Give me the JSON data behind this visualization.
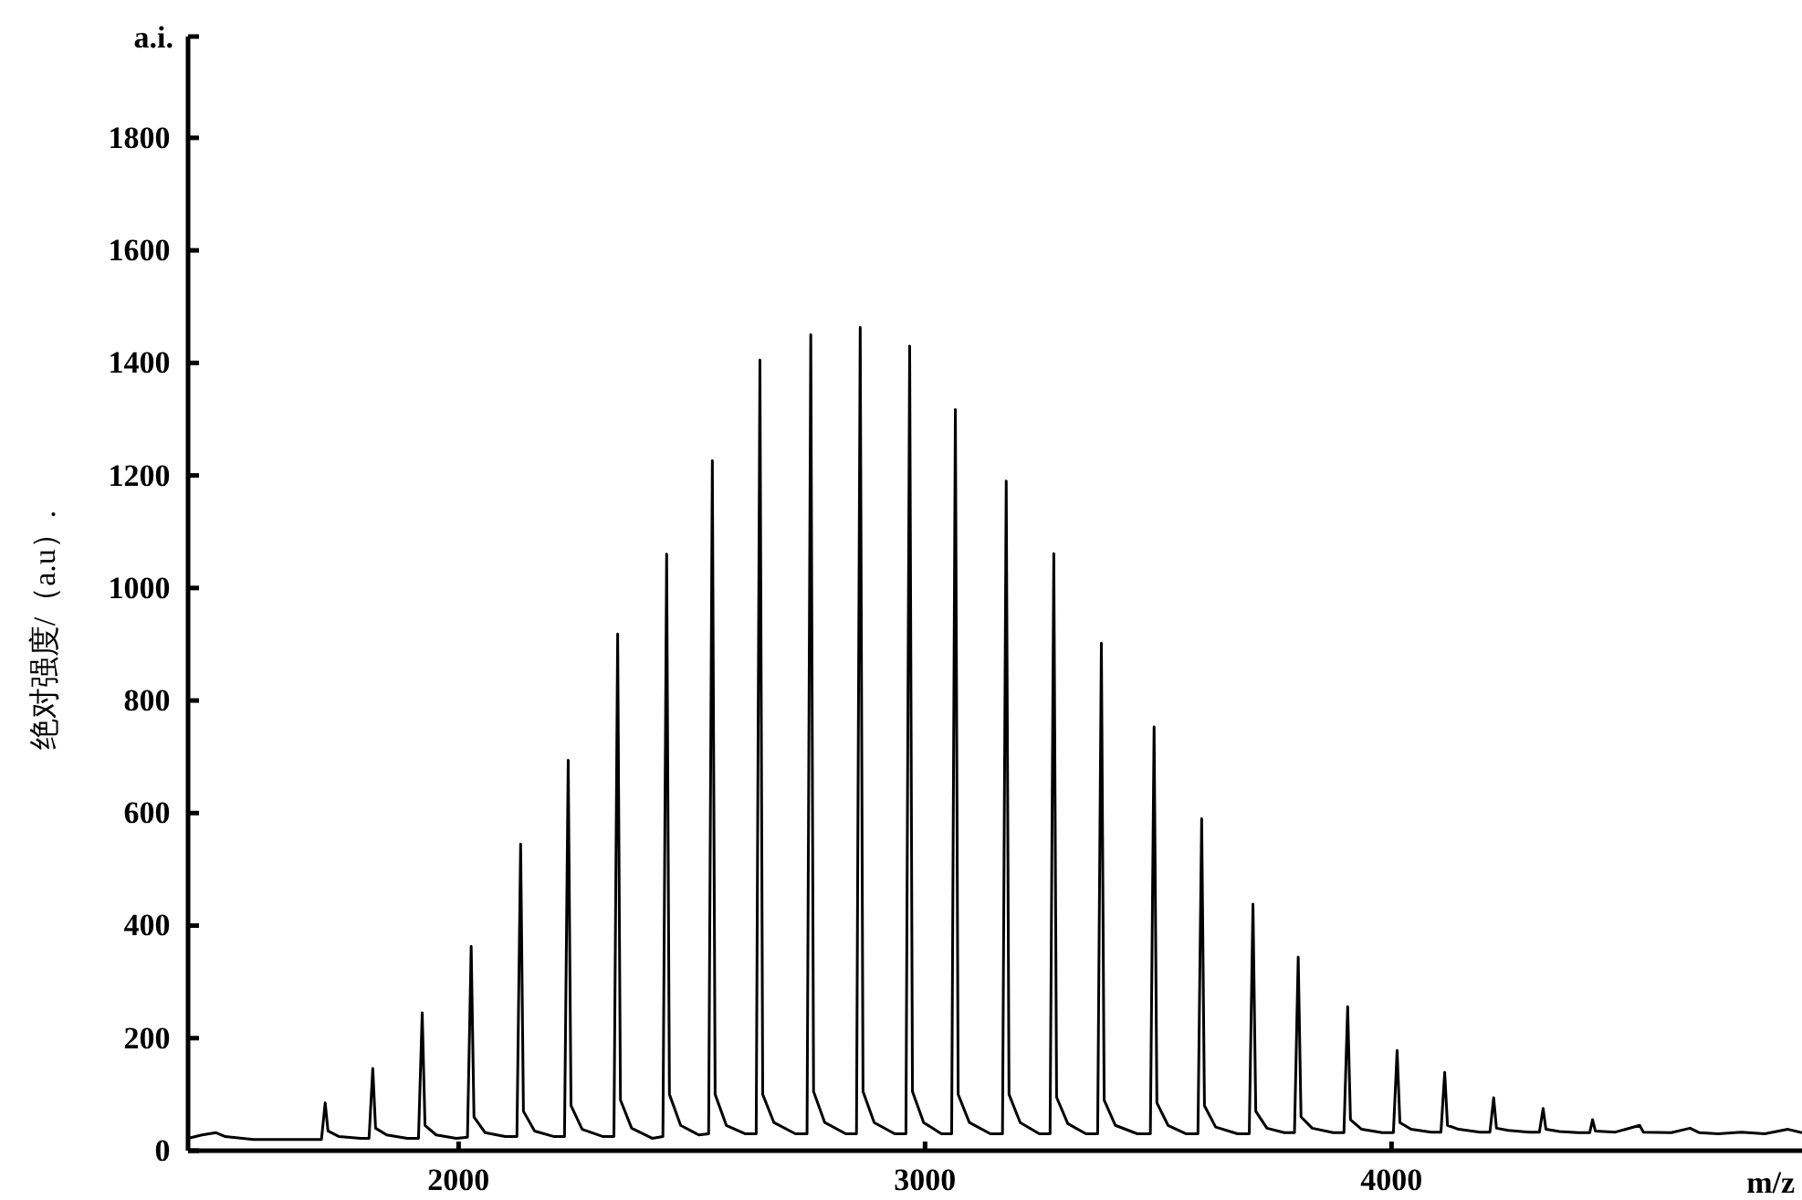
{
  "chart_data": {
    "type": "line",
    "xlabel": "m/z",
    "ylabel": "绝对强度/（a.u）.",
    "annotations": [
      "a.i."
    ],
    "xlim": [
      1420,
      4880
    ],
    "ylim": [
      0,
      1980
    ],
    "xticks": [
      2000,
      3000,
      4000
    ],
    "yticks": [
      0,
      200,
      400,
      600,
      800,
      1000,
      1200,
      1400,
      1600,
      1800
    ],
    "marker": "none",
    "line_style": "solid",
    "series": [
      {
        "color": "#000000",
        "x": [
          1420,
          1450,
          1480,
          1500,
          1560,
          1650,
          1706,
          1714,
          1720,
          1744,
          1790,
          1808,
          1816,
          1822,
          1846,
          1890,
          1914,
          1922,
          1928,
          1952,
          1995,
          2019,
          2027,
          2033,
          2057,
          2100,
          2125,
          2133,
          2139,
          2163,
          2205,
          2227,
          2235,
          2241,
          2265,
          2310,
          2333,
          2341,
          2347,
          2371,
          2415,
          2438,
          2446,
          2452,
          2476,
          2515,
          2536,
          2544,
          2550,
          2574,
          2615,
          2638,
          2646,
          2652,
          2676,
          2722,
          2747,
          2755,
          2761,
          2785,
          2830,
          2853,
          2861,
          2867,
          2891,
          2935,
          2959,
          2967,
          2973,
          2997,
          3035,
          3057,
          3065,
          3071,
          3095,
          3140,
          3166,
          3174,
          3180,
          3204,
          3245,
          3268,
          3276,
          3282,
          3306,
          3345,
          3370,
          3378,
          3384,
          3408,
          3455,
          3483,
          3491,
          3497,
          3521,
          3560,
          3585,
          3593,
          3599,
          3623,
          3670,
          3695,
          3703,
          3709,
          3733,
          3770,
          3792,
          3800,
          3806,
          3830,
          3875,
          3898,
          3906,
          3912,
          3936,
          3980,
          4004,
          4012,
          4018,
          4042,
          4085,
          4106,
          4114,
          4120,
          4144,
          4190,
          4211,
          4219,
          4225,
          4250,
          4295,
          4317,
          4325,
          4331,
          4360,
          4400,
          4425,
          4431,
          4437,
          4480,
          4532,
          4540,
          4600,
          4640,
          4660,
          4700,
          4750,
          4800,
          4850,
          4880
        ],
        "values": [
          22,
          28,
          32,
          25,
          20,
          20,
          20,
          85,
          35,
          25,
          22,
          22,
          146,
          40,
          28,
          22,
          22,
          245,
          45,
          28,
          22,
          24,
          363,
          60,
          32,
          25,
          25,
          545,
          70,
          35,
          25,
          25,
          694,
          80,
          38,
          25,
          25,
          918,
          90,
          40,
          22,
          25,
          1060,
          100,
          45,
          28,
          30,
          1226,
          100,
          45,
          30,
          30,
          1405,
          100,
          50,
          30,
          30,
          1450,
          105,
          50,
          30,
          30,
          1463,
          105,
          50,
          30,
          30,
          1430,
          105,
          50,
          30,
          30,
          1317,
          100,
          50,
          30,
          30,
          1190,
          100,
          50,
          30,
          30,
          1061,
          95,
          48,
          30,
          30,
          902,
          90,
          45,
          30,
          30,
          753,
          85,
          45,
          30,
          30,
          590,
          80,
          42,
          30,
          30,
          438,
          70,
          40,
          32,
          32,
          344,
          60,
          40,
          32,
          32,
          256,
          55,
          38,
          32,
          32,
          178,
          50,
          38,
          33,
          33,
          139,
          45,
          38,
          33,
          33,
          94,
          40,
          36,
          33,
          33,
          75,
          38,
          34,
          32,
          32,
          55,
          35,
          33,
          45,
          33,
          32,
          40,
          32,
          30,
          33,
          30,
          38,
          32
        ]
      }
    ]
  }
}
